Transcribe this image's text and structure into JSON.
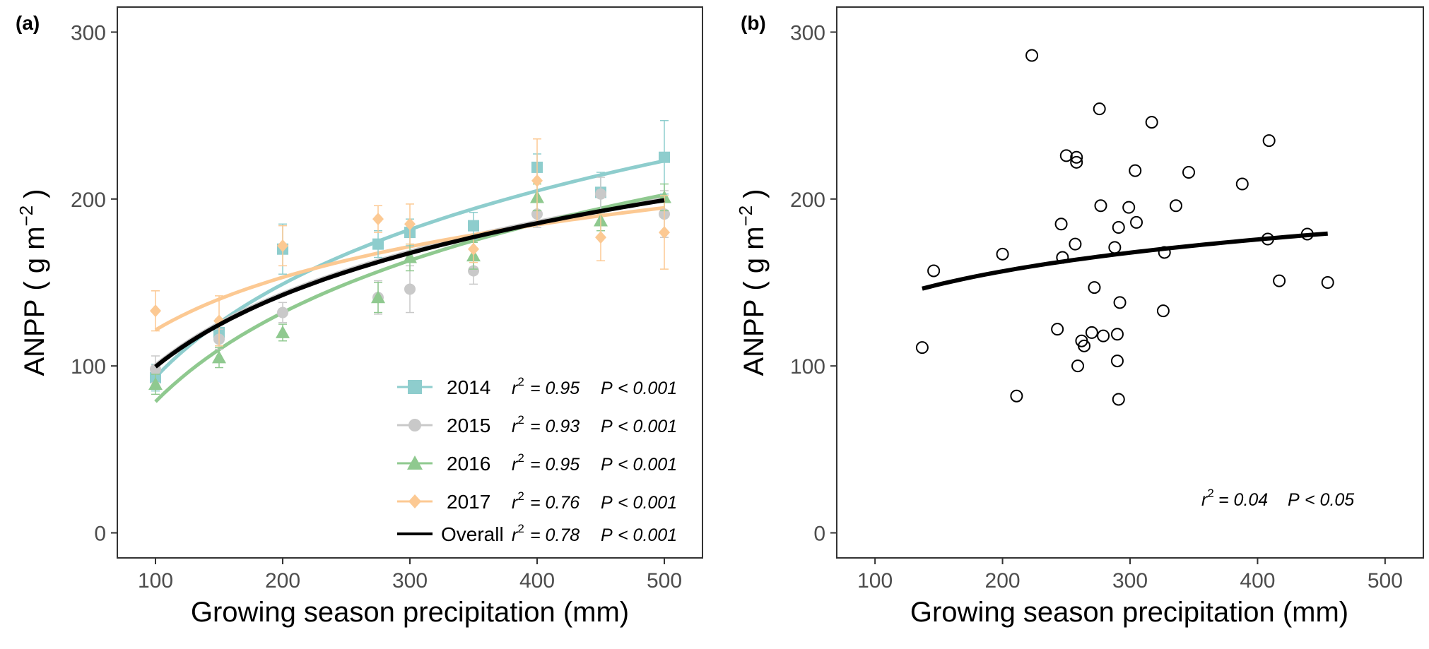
{
  "chart_data": [
    {
      "type": "line",
      "panel_label": "(a)",
      "xlabel": "Growing season precipitation (mm)",
      "ylabel": "ANPP",
      "ylabel_unit": "( g m",
      "ylabel_exp": "−2",
      "ylabel_close": ")",
      "xticks": [
        "100",
        "200",
        "300",
        "400",
        "500"
      ],
      "yticks": [
        "0",
        "100",
        "200",
        "300"
      ],
      "xlim": [
        70,
        530
      ],
      "ylim": [
        -15,
        315
      ],
      "grid": false,
      "legend_position": "bottom-right",
      "x": [
        100,
        150,
        200,
        275,
        300,
        350,
        400,
        450,
        500
      ],
      "series": [
        {
          "name": "2014",
          "color": "#8ecdcd",
          "marker": "square",
          "values": [
            93,
            120,
            170,
            173,
            180,
            184,
            219,
            204,
            225
          ],
          "errors": [
            8,
            8,
            15,
            8,
            8,
            8,
            8,
            12,
            22
          ],
          "fit": {
            "a": -278,
            "b": 80.6
          },
          "stats": {
            "r2": "= 0.95",
            "p": "< 0.001"
          }
        },
        {
          "name": "2015",
          "color": "#c9c9c9",
          "marker": "circle",
          "values": [
            98,
            116,
            132,
            141,
            146,
            157,
            191,
            203,
            191
          ],
          "errors": [
            8,
            6,
            6,
            10,
            14,
            8,
            8,
            10,
            14
          ],
          "fit": {
            "a": -185,
            "b": 62
          },
          "stats": {
            "r2": "= 0.93",
            "p": "< 0.001"
          }
        },
        {
          "name": "2016",
          "color": "#8fc98f",
          "marker": "triangle",
          "values": [
            89,
            105,
            120,
            141,
            165,
            166,
            201,
            187,
            201
          ],
          "errors": [
            6,
            6,
            5,
            9,
            8,
            8,
            8,
            6,
            8
          ],
          "fit": {
            "a": -276,
            "b": 77
          },
          "stats": {
            "r2": "= 0.95",
            "p": "< 0.001"
          }
        },
        {
          "name": "2017",
          "color": "#fcc993",
          "marker": "diamond",
          "values": [
            133,
            127,
            172,
            188,
            185,
            170,
            211,
            177,
            180
          ],
          "errors": [
            12,
            15,
            12,
            8,
            12,
            8,
            25,
            14,
            22
          ],
          "fit": {
            "a": -88,
            "b": 45.5
          },
          "stats": {
            "r2": "= 0.76",
            "p": "< 0.001"
          }
        },
        {
          "name": "Overall",
          "color": "#000000",
          "marker": "none",
          "fit": {
            "a": -186,
            "b": 62
          },
          "stats": {
            "r2": "= 0.78",
            "p": "< 0.001"
          }
        }
      ]
    },
    {
      "type": "scatter",
      "panel_label": "(b)",
      "xlabel": "Growing season precipitation (mm)",
      "ylabel": "ANPP",
      "ylabel_unit": "( g m",
      "ylabel_exp": "−2",
      "ylabel_close": ")",
      "xticks": [
        "100",
        "200",
        "300",
        "400",
        "500"
      ],
      "yticks": [
        "0",
        "100",
        "200",
        "300"
      ],
      "xlim": [
        70,
        530
      ],
      "ylim": [
        -15,
        315
      ],
      "grid": false,
      "fit": {
        "a": 11,
        "b": 27.5,
        "x_range": [
          137,
          455
        ],
        "color": "#000000"
      },
      "stats": {
        "r2": "= 0.04",
        "p": "< 0.05"
      },
      "points": [
        [
          137,
          111
        ],
        [
          146,
          157
        ],
        [
          200,
          167
        ],
        [
          211,
          82
        ],
        [
          223,
          286
        ],
        [
          243,
          122
        ],
        [
          246,
          185
        ],
        [
          247,
          165
        ],
        [
          250,
          226
        ],
        [
          257,
          173
        ],
        [
          258,
          225
        ],
        [
          258,
          222
        ],
        [
          259,
          100
        ],
        [
          262,
          115
        ],
        [
          264,
          112
        ],
        [
          270,
          120
        ],
        [
          272,
          147
        ],
        [
          276,
          254
        ],
        [
          277,
          196
        ],
        [
          279,
          118
        ],
        [
          288,
          171
        ],
        [
          290,
          103
        ],
        [
          290,
          119
        ],
        [
          291,
          183
        ],
        [
          291,
          80
        ],
        [
          292,
          138
        ],
        [
          299,
          195
        ],
        [
          304,
          217
        ],
        [
          305,
          186
        ],
        [
          317,
          246
        ],
        [
          326,
          133
        ],
        [
          327,
          168
        ],
        [
          336,
          196
        ],
        [
          346,
          216
        ],
        [
          388,
          209
        ],
        [
          408,
          176
        ],
        [
          409,
          235
        ],
        [
          417,
          151
        ],
        [
          439,
          179
        ],
        [
          455,
          150
        ]
      ]
    }
  ]
}
